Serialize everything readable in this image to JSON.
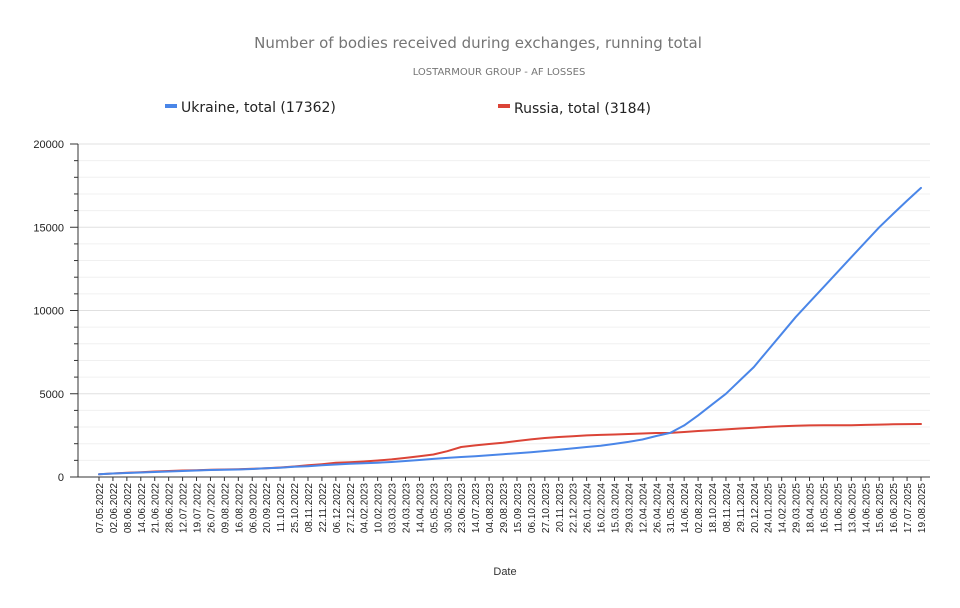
{
  "chart_data": {
    "type": "line",
    "title": "Number of bodies received during exchanges, running total",
    "subtitle": "LOSTARMOUR GROUP - AF LOSSES",
    "xlabel": "Date",
    "ylabel": "",
    "ylim": [
      0,
      20000
    ],
    "yticks": [
      "0",
      "5000",
      "10000",
      "15000",
      "20000"
    ],
    "grid": true,
    "legend_position": "top",
    "categories": [
      "07.05.2022",
      "02.06.2022",
      "08.06.2022",
      "14.06.2022",
      "21.06.2022",
      "28.06.2022",
      "12.07.2022",
      "19.07.2022",
      "26.07.2022",
      "09.08.2022",
      "16.08.2022",
      "06.09.2022",
      "20.09.2022",
      "11.10.2022",
      "25.10.2022",
      "08.11.2022",
      "22.11.2022",
      "06.12.2022",
      "27.12.2022",
      "04.02.2023",
      "10.02.2023",
      "03.03.2023",
      "24.03.2023",
      "14.04.2023",
      "05.05.2023",
      "30.05.2023",
      "23.06.2023",
      "14.07.2023",
      "04.08.2023",
      "29.08.2023",
      "15.09.2023",
      "06.10.2023",
      "27.10.2023",
      "20.11.2023",
      "22.12.2023",
      "26.01.2024",
      "16.02.2024",
      "15.03.2024",
      "29.03.2024",
      "12.04.2024",
      "26.04.2024",
      "31.05.2024",
      "14.06.2024",
      "02.08.2024",
      "18.10.2024",
      "08.11.2024",
      "29.11.2024",
      "20.12.2024",
      "24.01.2025",
      "14.02.2025",
      "29.03.2025",
      "18.04.2025",
      "16.05.2025",
      "11.06.2025",
      "13.06.2025",
      "14.06.2025",
      "15.06.2025",
      "16.06.2025",
      "17.07.2025",
      "19.08.2025"
    ],
    "series": [
      {
        "name": "Ukraine, total (17362)",
        "color": "#4a86e8",
        "values": [
          160,
          210,
          240,
          270,
          300,
          330,
          360,
          390,
          420,
          440,
          450,
          480,
          520,
          560,
          610,
          650,
          700,
          750,
          790,
          820,
          860,
          900,
          960,
          1020,
          1090,
          1150,
          1200,
          1250,
          1310,
          1370,
          1430,
          1490,
          1560,
          1640,
          1720,
          1800,
          1880,
          1990,
          2110,
          2250,
          2460,
          2650,
          3100,
          3700,
          4350,
          5000,
          5800,
          6600,
          7600,
          8600,
          9600,
          10500,
          11400,
          12300,
          13200,
          14100,
          15000,
          15800,
          16600,
          17362
        ]
      },
      {
        "name": "Russia, total (3184)",
        "color": "#db4437",
        "values": [
          160,
          210,
          250,
          290,
          330,
          360,
          390,
          410,
          430,
          450,
          470,
          490,
          520,
          570,
          630,
          700,
          770,
          850,
          890,
          930,
          990,
          1060,
          1150,
          1250,
          1350,
          1550,
          1800,
          1900,
          1980,
          2060,
          2160,
          2260,
          2340,
          2400,
          2450,
          2500,
          2530,
          2550,
          2580,
          2610,
          2640,
          2650,
          2700,
          2760,
          2810,
          2860,
          2910,
          2960,
          3010,
          3050,
          3080,
          3100,
          3110,
          3110,
          3110,
          3130,
          3150,
          3165,
          3175,
          3184
        ]
      }
    ]
  }
}
